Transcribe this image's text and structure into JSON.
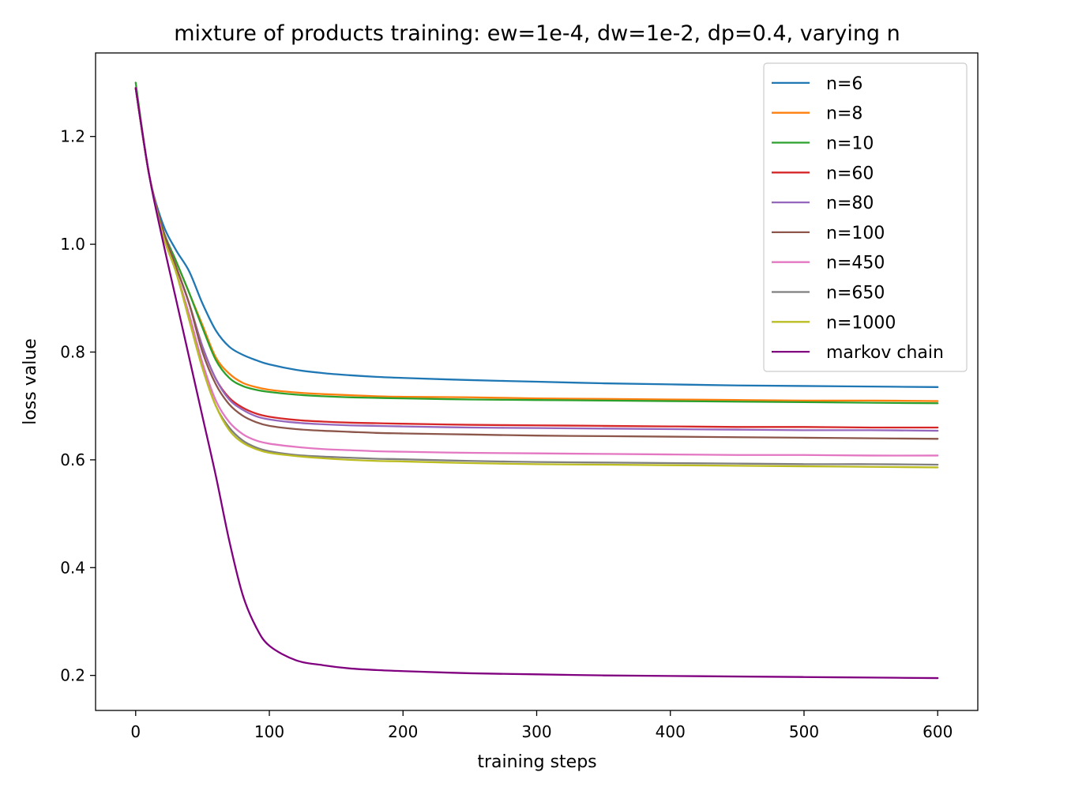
{
  "chart_data": {
    "type": "line",
    "title": "mixture of products training: ew=1e-4, dw=1e-2, dp=0.4, varying n",
    "xlabel": "training steps",
    "ylabel": "loss value",
    "xlim": [
      -30,
      630
    ],
    "ylim": [
      0.135,
      1.355
    ],
    "xticks": [
      0,
      100,
      200,
      300,
      400,
      500,
      600
    ],
    "xtick_labels": [
      "0",
      "100",
      "200",
      "300",
      "400",
      "500",
      "600"
    ],
    "yticks": [
      0.2,
      0.4,
      0.6,
      0.8,
      1.0,
      1.2
    ],
    "ytick_labels": [
      "0.2",
      "0.4",
      "0.6",
      "0.8",
      "1.0",
      "1.2"
    ],
    "grid": false,
    "legend_position": "upper right",
    "x": [
      0,
      10,
      20,
      30,
      40,
      50,
      60,
      70,
      80,
      90,
      100,
      120,
      140,
      160,
      180,
      200,
      250,
      300,
      350,
      400,
      450,
      500,
      550,
      600
    ],
    "series": [
      {
        "name": "n=6",
        "color": "#1f77b4",
        "values": [
          1.29,
          1.13,
          1.04,
          0.99,
          0.95,
          0.89,
          0.84,
          0.81,
          0.795,
          0.785,
          0.777,
          0.767,
          0.761,
          0.757,
          0.754,
          0.752,
          0.748,
          0.745,
          0.742,
          0.74,
          0.738,
          0.737,
          0.736,
          0.735
        ]
      },
      {
        "name": "n=8",
        "color": "#ff7f0e",
        "values": [
          1.29,
          1.13,
          1.03,
          0.97,
          0.91,
          0.85,
          0.79,
          0.76,
          0.743,
          0.735,
          0.73,
          0.725,
          0.722,
          0.72,
          0.718,
          0.717,
          0.716,
          0.714,
          0.713,
          0.712,
          0.711,
          0.71,
          0.71,
          0.709
        ]
      },
      {
        "name": "n=10",
        "color": "#2ca02c",
        "values": [
          1.3,
          1.13,
          1.03,
          0.97,
          0.91,
          0.845,
          0.785,
          0.752,
          0.737,
          0.73,
          0.726,
          0.721,
          0.718,
          0.716,
          0.715,
          0.714,
          0.712,
          0.711,
          0.71,
          0.709,
          0.708,
          0.707,
          0.706,
          0.705
        ]
      },
      {
        "name": "n=60",
        "color": "#d62728",
        "values": [
          1.29,
          1.13,
          1.03,
          0.96,
          0.89,
          0.81,
          0.75,
          0.715,
          0.697,
          0.686,
          0.68,
          0.674,
          0.671,
          0.669,
          0.668,
          0.667,
          0.665,
          0.664,
          0.663,
          0.662,
          0.661,
          0.661,
          0.66,
          0.66
        ]
      },
      {
        "name": "n=80",
        "color": "#9467bd",
        "values": [
          1.29,
          1.13,
          1.03,
          0.96,
          0.89,
          0.81,
          0.75,
          0.712,
          0.693,
          0.681,
          0.675,
          0.669,
          0.666,
          0.664,
          0.663,
          0.662,
          0.66,
          0.659,
          0.658,
          0.657,
          0.656,
          0.655,
          0.655,
          0.654
        ]
      },
      {
        "name": "n=100",
        "color": "#8c564b",
        "values": [
          1.29,
          1.13,
          1.03,
          0.96,
          0.89,
          0.8,
          0.74,
          0.703,
          0.682,
          0.67,
          0.663,
          0.657,
          0.654,
          0.652,
          0.65,
          0.649,
          0.647,
          0.645,
          0.644,
          0.643,
          0.642,
          0.641,
          0.64,
          0.639
        ]
      },
      {
        "name": "n=450",
        "color": "#e377c2",
        "values": [
          1.29,
          1.13,
          1.02,
          0.95,
          0.87,
          0.78,
          0.71,
          0.67,
          0.648,
          0.636,
          0.63,
          0.624,
          0.62,
          0.618,
          0.616,
          0.615,
          0.613,
          0.612,
          0.611,
          0.61,
          0.609,
          0.609,
          0.608,
          0.608
        ]
      },
      {
        "name": "n=650",
        "color": "#7f7f7f",
        "values": [
          1.29,
          1.13,
          1.02,
          0.95,
          0.86,
          0.77,
          0.7,
          0.66,
          0.636,
          0.623,
          0.616,
          0.609,
          0.606,
          0.604,
          0.602,
          0.601,
          0.598,
          0.596,
          0.595,
          0.594,
          0.593,
          0.592,
          0.592,
          0.591
        ]
      },
      {
        "name": "n=1000",
        "color": "#bcbd22",
        "values": [
          1.29,
          1.13,
          1.02,
          0.95,
          0.86,
          0.77,
          0.7,
          0.655,
          0.632,
          0.62,
          0.613,
          0.607,
          0.603,
          0.6,
          0.598,
          0.597,
          0.594,
          0.592,
          0.591,
          0.59,
          0.589,
          0.588,
          0.587,
          0.586
        ]
      },
      {
        "name": "markov chain",
        "color": "#800080",
        "values": [
          1.29,
          1.13,
          1.01,
          0.9,
          0.79,
          0.68,
          0.57,
          0.45,
          0.35,
          0.29,
          0.255,
          0.228,
          0.219,
          0.213,
          0.21,
          0.208,
          0.204,
          0.202,
          0.2,
          0.199,
          0.198,
          0.197,
          0.196,
          0.195
        ]
      }
    ]
  }
}
